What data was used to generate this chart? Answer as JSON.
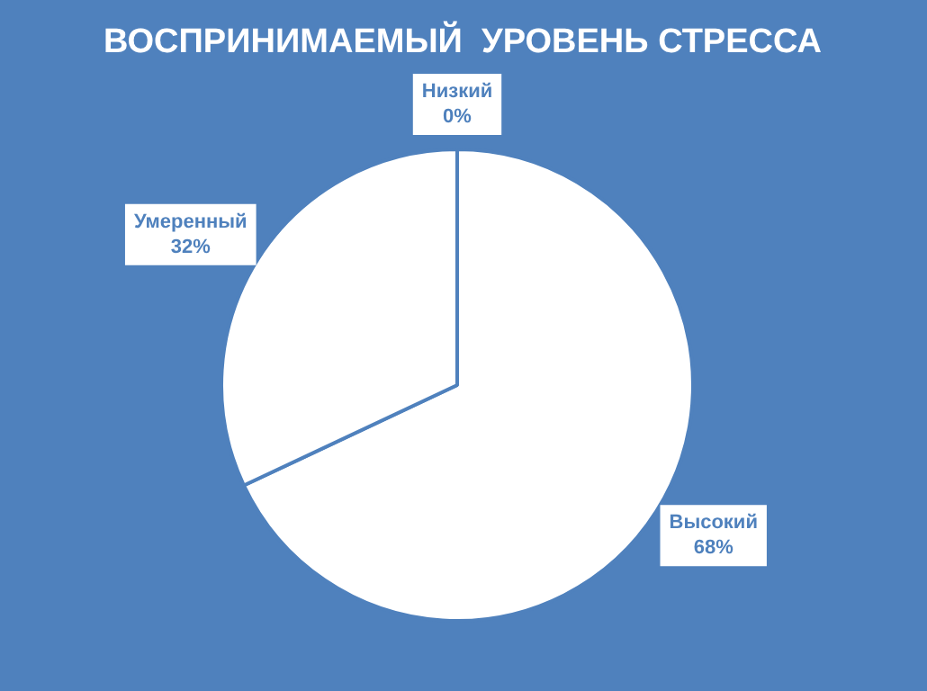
{
  "chart_data": {
    "type": "pie",
    "title": "ВОСПРИНИМАЕМЫЙ  УРОВЕНЬ СТРЕССА",
    "categories": [
      "Низкий",
      "Высокий",
      "Умеренный"
    ],
    "values": [
      0,
      68,
      32
    ],
    "value_labels": [
      "0%",
      "68%",
      "32%"
    ],
    "colors": [
      "#ffffff",
      "#ffffff",
      "#ffffff"
    ],
    "legend": false
  }
}
